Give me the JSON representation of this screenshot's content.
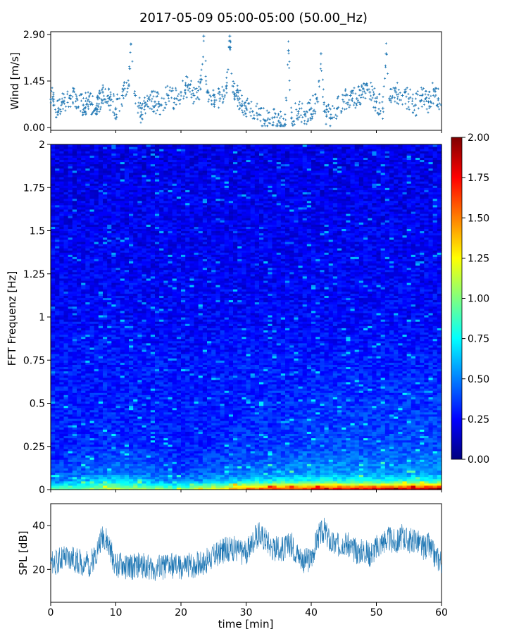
{
  "chart_data": [
    {
      "type": "scatter",
      "panel": "wind",
      "title": "2017-05-09 05:00-05:00 (50.00_Hz)",
      "ylabel": "Wind [m/s]",
      "ylim": [
        0.0,
        2.9
      ],
      "yticks": [
        "0.00",
        "1.45",
        "2.90"
      ],
      "xlim": [
        0,
        60
      ],
      "marker": "+",
      "color": "#1f77b4",
      "x": [
        0.5,
        1.2,
        2.0,
        3.0,
        4.0,
        5.0,
        6.0,
        7.0,
        8.0,
        9.0,
        10.0,
        11.0,
        12.0,
        12.3,
        13.0,
        14.0,
        15.0,
        16.0,
        17.0,
        18.0,
        19.0,
        20.0,
        21.0,
        22.0,
        23.0,
        23.5,
        24.0,
        25.0,
        26.0,
        27.0,
        27.5,
        28.0,
        29.0,
        30.0,
        31.0,
        32.0,
        33.0,
        34.0,
        35.0,
        36.0,
        36.5,
        37.0,
        38.0,
        39.0,
        40.0,
        41.0,
        41.5,
        42.0,
        43.0,
        44.0,
        45.0,
        46.0,
        47.0,
        48.0,
        49.0,
        50.0,
        51.0,
        51.5,
        52.0,
        53.0,
        54.0,
        55.0,
        56.0,
        57.0,
        58.0,
        59.0,
        59.5
      ],
      "y": [
        0.7,
        0.6,
        0.8,
        1.0,
        0.9,
        0.7,
        0.8,
        0.6,
        1.1,
        0.9,
        0.6,
        1.0,
        1.3,
        2.6,
        1.0,
        0.4,
        0.9,
        0.8,
        0.7,
        1.0,
        0.9,
        1.1,
        1.3,
        1.0,
        1.2,
        2.85,
        1.1,
        1.0,
        0.9,
        1.3,
        2.85,
        1.1,
        0.9,
        0.6,
        0.5,
        0.4,
        0.2,
        0.3,
        0.2,
        0.1,
        2.4,
        0.3,
        0.5,
        0.4,
        0.6,
        0.8,
        2.3,
        0.5,
        0.3,
        0.6,
        0.8,
        1.0,
        0.9,
        1.2,
        1.1,
        0.8,
        0.6,
        2.3,
        0.9,
        1.1,
        1.0,
        0.9,
        0.7,
        1.0,
        0.8,
        1.2,
        0.9
      ]
    },
    {
      "type": "heatmap",
      "panel": "spectrogram",
      "ylabel": "FFT Frequenz [Hz]",
      "ylim": [
        0,
        2
      ],
      "yticks": [
        "0",
        "0.25",
        "0.5",
        "0.75",
        "1",
        "1.25",
        "1.5",
        "1.75",
        "2"
      ],
      "xlim": [
        0,
        60
      ],
      "colormap": "jet",
      "colorbar": {
        "min": 0.0,
        "max": 2.0,
        "ticks": [
          "0.00",
          "0.25",
          "0.50",
          "0.75",
          "1.00",
          "1.25",
          "1.50",
          "1.75",
          "2.00"
        ]
      },
      "freq": [
        0,
        0.05,
        0.1,
        0.15,
        0.25,
        0.5,
        0.75,
        1.0,
        1.5,
        2.0
      ],
      "time": [
        0,
        10,
        20,
        30,
        40,
        50,
        60
      ],
      "values": [
        [
          0.9,
          1.2,
          1.0,
          1.6,
          1.8,
          1.9,
          2.0
        ],
        [
          0.5,
          0.7,
          0.5,
          0.7,
          0.8,
          0.8,
          0.8
        ],
        [
          0.4,
          0.5,
          0.4,
          0.5,
          0.55,
          0.55,
          0.55
        ],
        [
          0.35,
          0.45,
          0.35,
          0.45,
          0.5,
          0.5,
          0.5
        ],
        [
          0.3,
          0.35,
          0.3,
          0.35,
          0.4,
          0.4,
          0.4
        ],
        [
          0.3,
          0.3,
          0.3,
          0.3,
          0.35,
          0.35,
          0.35
        ],
        [
          0.28,
          0.3,
          0.28,
          0.3,
          0.3,
          0.3,
          0.3
        ],
        [
          0.25,
          0.25,
          0.25,
          0.25,
          0.25,
          0.25,
          0.25
        ],
        [
          0.22,
          0.22,
          0.22,
          0.22,
          0.22,
          0.22,
          0.22
        ],
        [
          0.2,
          0.2,
          0.2,
          0.2,
          0.2,
          0.2,
          0.2
        ]
      ]
    },
    {
      "type": "line",
      "panel": "spl",
      "ylabel": "SPL [dB]",
      "xlabel": "time [min]",
      "ylim": [
        5,
        50
      ],
      "yticks": [
        "20",
        "40"
      ],
      "xlim": [
        0,
        60
      ],
      "xticks": [
        "0",
        "10",
        "20",
        "30",
        "40",
        "50",
        "60"
      ],
      "color": "#1f77b4",
      "x": [
        0,
        2,
        4,
        6,
        7,
        8,
        9,
        10,
        12,
        14,
        16,
        18,
        20,
        22,
        24,
        26,
        28,
        30,
        31,
        32,
        33,
        34,
        35,
        36,
        37,
        38,
        39,
        40,
        41,
        42,
        43,
        44,
        45,
        46,
        47,
        48,
        49,
        50,
        51,
        52,
        53,
        54,
        55,
        56,
        57,
        58,
        59,
        60
      ],
      "y": [
        22,
        25,
        24,
        22,
        28,
        36,
        30,
        22,
        21,
        22,
        20,
        22,
        21,
        22,
        24,
        28,
        30,
        27,
        33,
        36,
        34,
        30,
        29,
        30,
        31,
        27,
        24,
        25,
        35,
        38,
        32,
        31,
        33,
        30,
        28,
        29,
        27,
        30,
        33,
        34,
        32,
        35,
        33,
        34,
        30,
        31,
        26,
        24
      ],
      "spread": 6
    }
  ]
}
